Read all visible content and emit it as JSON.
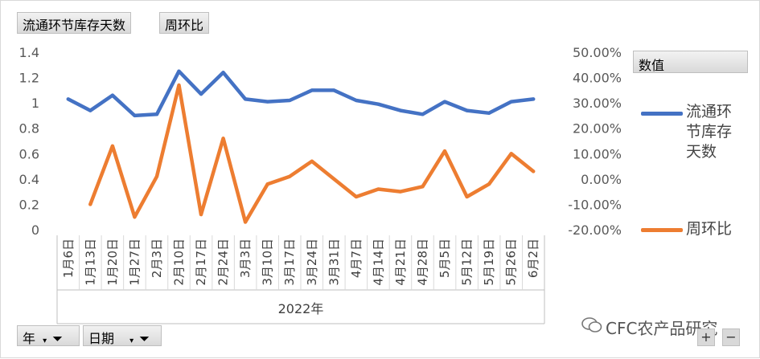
{
  "filters": {
    "series1_button": "流通环节库存天数",
    "series2_button": "周环比",
    "year_filter": "年",
    "date_filter": "日期"
  },
  "legend": {
    "title": "数值",
    "series1_lines": [
      "流通环",
      "节库存",
      "天数"
    ],
    "series2": "周环比"
  },
  "watermark": "CFC农产品研究",
  "corner_buttons": [
    "+",
    "−"
  ],
  "colors": {
    "series1": "#4472C4",
    "series2": "#ED7D31"
  },
  "chart_data": {
    "type": "line",
    "categories": [
      "1月6日",
      "1月13日",
      "1月20日",
      "1月27日",
      "2月3日",
      "2月10日",
      "2月17日",
      "2月24日",
      "3月3日",
      "3月10日",
      "3月17日",
      "3月24日",
      "3月31日",
      "4月7日",
      "4月14日",
      "4月21日",
      "4月28日",
      "5月5日",
      "5月12日",
      "5月19日",
      "5月26日",
      "6月2日"
    ],
    "group_label": "2022年",
    "series": [
      {
        "name": "流通环节库存天数",
        "axis": "left",
        "values": [
          1.03,
          0.94,
          1.06,
          0.9,
          0.91,
          1.25,
          1.07,
          1.24,
          1.03,
          1.01,
          1.02,
          1.1,
          1.1,
          1.02,
          0.99,
          0.94,
          0.91,
          1.01,
          0.94,
          0.92,
          1.01,
          1.03
        ]
      },
      {
        "name": "周环比",
        "axis": "right",
        "values": [
          null,
          -0.1,
          0.13,
          -0.15,
          0.01,
          0.37,
          -0.14,
          0.16,
          -0.17,
          -0.02,
          0.01,
          0.07,
          0.0,
          -0.07,
          -0.04,
          -0.05,
          -0.03,
          0.11,
          -0.07,
          -0.02,
          0.1,
          0.03
        ]
      }
    ],
    "y_left": {
      "min": 0,
      "max": 1.4,
      "ticks": [
        "0",
        "0.2",
        "0.4",
        "0.6",
        "0.8",
        "1",
        "1.2",
        "1.4"
      ]
    },
    "y_right": {
      "min": -0.2,
      "max": 0.5,
      "ticks": [
        "-20.00%",
        "-10.00%",
        "0.00%",
        "10.00%",
        "20.00%",
        "30.00%",
        "40.00%",
        "50.00%"
      ]
    },
    "grid": false,
    "legend_position": "right"
  }
}
